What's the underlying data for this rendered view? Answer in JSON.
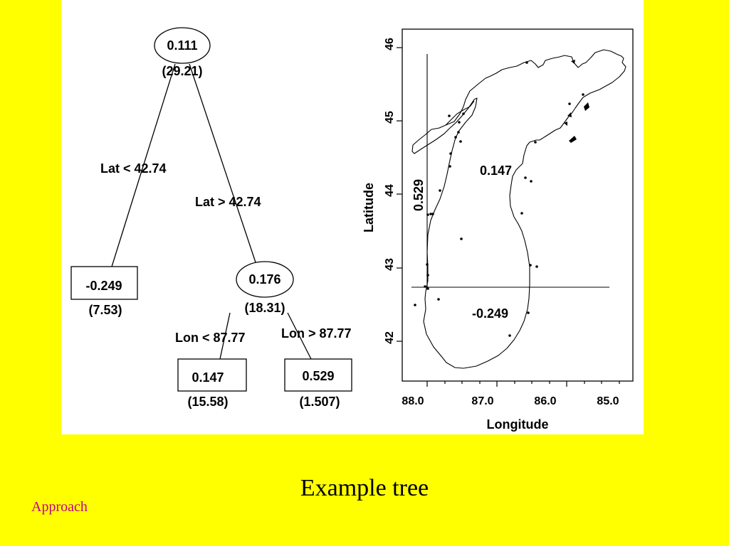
{
  "slide": {
    "title": "Example tree",
    "nav_link": "Approach"
  },
  "tree": {
    "root": {
      "value": "0.111",
      "sub": "(29.21)"
    },
    "split_lat_left": "Lat < 42.74",
    "split_lat_right": "Lat > 42.74",
    "leaf_south": {
      "value": "-0.249",
      "sub": "(7.53)"
    },
    "node_north": {
      "value": "0.176",
      "sub": "(18.31)"
    },
    "split_lon_left": "Lon < 87.77",
    "split_lon_right": "Lon > 87.77",
    "leaf_east": {
      "value": "0.147",
      "sub": "(15.58)"
    },
    "leaf_west": {
      "value": "0.529",
      "sub": "(1.507)"
    }
  },
  "map": {
    "xlabel": "Longitude",
    "ylabel": "Latitude",
    "x_ticks": [
      "88.0",
      "87.0",
      "86.0",
      "85.0"
    ],
    "y_ticks": [
      "42",
      "43",
      "44",
      "45",
      "46"
    ],
    "region_labels": {
      "east": "0.147",
      "west": "0.529",
      "south": "-0.249"
    },
    "split_lat": 42.74,
    "split_lon": 87.77
  }
}
